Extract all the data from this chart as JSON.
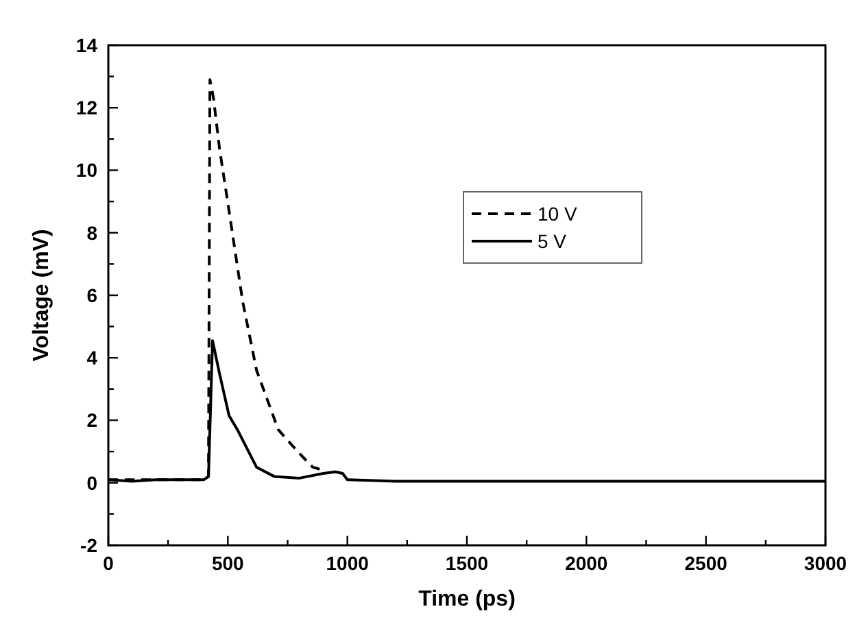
{
  "chart_data": {
    "type": "line",
    "xlabel": "Time (ps)",
    "ylabel": "Voltage (mV)",
    "xlim": [
      0,
      3000
    ],
    "ylim": [
      -2,
      14
    ],
    "xticks": [
      0,
      {
        "value": 250,
        "label": null
      },
      500,
      {
        "value": 750,
        "label": null
      },
      1000,
      {
        "value": 1250,
        "label": null
      },
      1500,
      {
        "value": 1750,
        "label": null
      },
      2000,
      {
        "value": 2250,
        "label": null
      },
      2500,
      {
        "value": 2750,
        "label": null
      },
      3000
    ],
    "yticks": [
      -2,
      {
        "value": -1,
        "label": null
      },
      0,
      {
        "value": 1,
        "label": null
      },
      2,
      {
        "value": 3,
        "label": null
      },
      4,
      {
        "value": 5,
        "label": null
      },
      6,
      {
        "value": 7,
        "label": null
      },
      8,
      {
        "value": 9,
        "label": null
      },
      10,
      {
        "value": 11,
        "label": null
      },
      12,
      {
        "value": 13,
        "label": null
      },
      14
    ],
    "legend": "top right",
    "grid": false,
    "series": [
      {
        "name": "10 V",
        "color": "#000000",
        "line_style": "dashed",
        "x": [
          0,
          100,
          200,
          300,
          400,
          419,
          425,
          440,
          465,
          505,
          562,
          620,
          711,
          792,
          855,
          900
        ],
        "values": [
          0.1,
          0.1,
          0.1,
          0.1,
          0.1,
          0.2,
          12.9,
          12.3,
          10.7,
          8.7,
          5.8,
          3.6,
          1.7,
          1,
          0.5,
          0.4
        ]
      },
      {
        "name": "5 V",
        "color": "#000000",
        "line_style": "solid",
        "x": [
          0,
          100,
          200,
          300,
          400,
          419,
          436,
          465,
          505,
          540,
          580,
          620,
          695,
          800,
          900,
          950,
          980,
          1000,
          1200,
          1500,
          2000,
          2500,
          3000
        ],
        "values": [
          0.1,
          0.05,
          0.1,
          0.1,
          0.1,
          0.2,
          4.55,
          3.5,
          2.15,
          1.7,
          1.1,
          0.5,
          0.2,
          0.15,
          0.3,
          0.35,
          0.3,
          0.1,
          0.05,
          0.05,
          0.05,
          0.05,
          0.05
        ]
      }
    ]
  }
}
